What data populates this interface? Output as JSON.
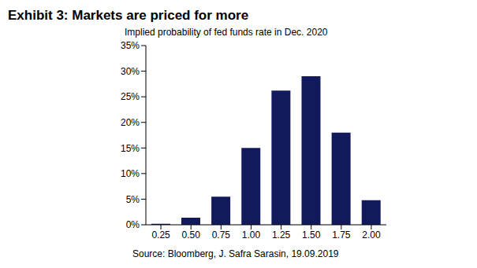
{
  "chart_data": {
    "type": "bar",
    "title": "Exhibit 3: Markets are priced for more",
    "subtitle": "Implied probability of fed funds rate in Dec. 2020",
    "source": "Source: Bloomberg, J. Safra Sarasin, 19.09.2019",
    "categories": [
      "0.25",
      "0.50",
      "0.75",
      "1.00",
      "1.25",
      "1.50",
      "1.75",
      "2.00"
    ],
    "values": [
      0.2,
      1.4,
      5.5,
      15,
      26.2,
      29,
      18,
      4.8
    ],
    "color": "#131a5c",
    "ylim": [
      0,
      35
    ],
    "yticks": [
      {
        "value": 0,
        "label": "0%"
      },
      {
        "value": 5,
        "label": "5%"
      },
      {
        "value": 10,
        "label": "10%"
      },
      {
        "value": 15,
        "label": "15%"
      },
      {
        "value": 20,
        "label": "20%"
      },
      {
        "value": 25,
        "label": "25%"
      },
      {
        "value": 30,
        "label": "30%"
      },
      {
        "value": 35,
        "label": "35%"
      }
    ],
    "grid": false
  }
}
